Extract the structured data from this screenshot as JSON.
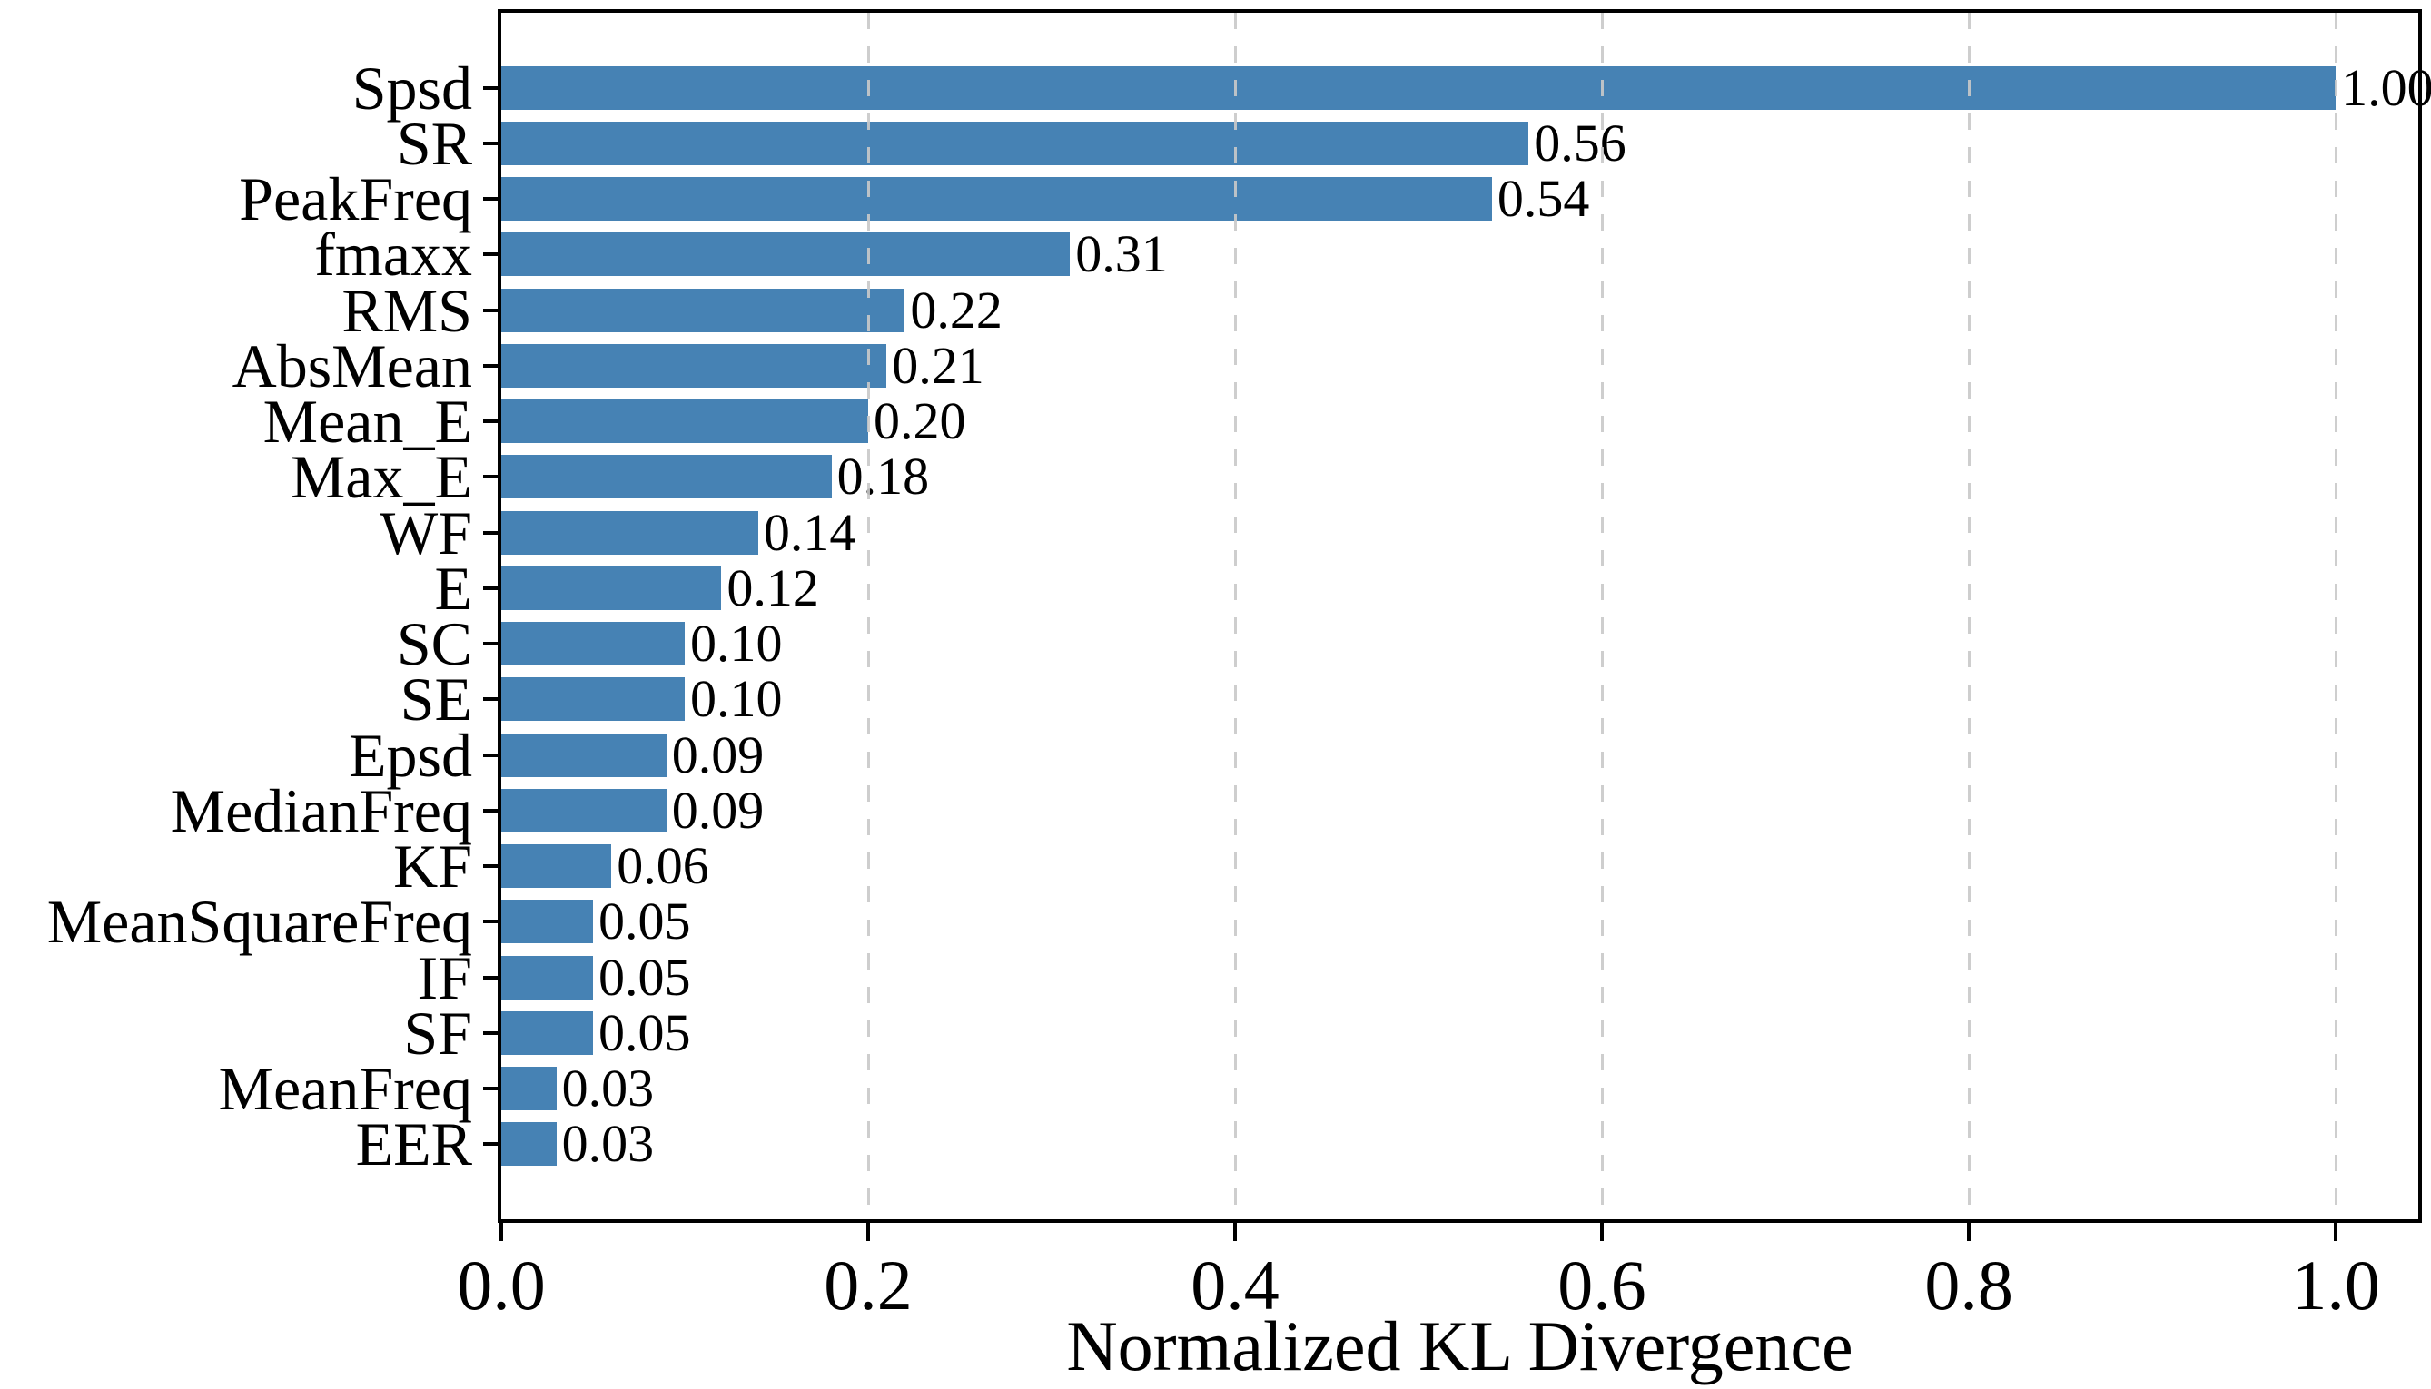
{
  "chart_data": {
    "type": "bar",
    "orientation": "horizontal",
    "title": "",
    "xlabel": "Normalized KL Divergence",
    "ylabel": "",
    "categories": [
      "Spsd",
      "SR",
      "PeakFreq",
      "fmaxx",
      "RMS",
      "AbsMean",
      "Mean_E",
      "Max_E",
      "WF",
      "E",
      "SC",
      "SE",
      "Epsd",
      "MedianFreq",
      "KF",
      "MeanSquareFreq",
      "IF",
      "SF",
      "MeanFreq",
      "EER"
    ],
    "values": [
      1.0,
      0.56,
      0.54,
      0.31,
      0.22,
      0.21,
      0.2,
      0.18,
      0.14,
      0.12,
      0.1,
      0.1,
      0.09,
      0.09,
      0.06,
      0.05,
      0.05,
      0.05,
      0.03,
      0.03
    ],
    "value_labels": [
      "1.00",
      "0.56",
      "0.54",
      "0.31",
      "0.22",
      "0.21",
      "0.20",
      "0.18",
      "0.14",
      "0.12",
      "0.10",
      "0.10",
      "0.09",
      "0.09",
      "0.06",
      "0.05",
      "0.05",
      "0.05",
      "0.03",
      "0.03"
    ],
    "x_ticks": [
      "0.0",
      "0.2",
      "0.4",
      "0.6",
      "0.8",
      "1.0"
    ],
    "x_tick_values": [
      0.0,
      0.2,
      0.4,
      0.6,
      0.8,
      1.0
    ],
    "xlim": [
      0,
      1.045
    ],
    "grid": "vertical-dashed",
    "legend": "none",
    "bar_color": "#4682B4",
    "grid_color": "#c9c9c9",
    "axis_color": "#000000",
    "text_color": "#000000",
    "background_color": "#ffffff"
  }
}
